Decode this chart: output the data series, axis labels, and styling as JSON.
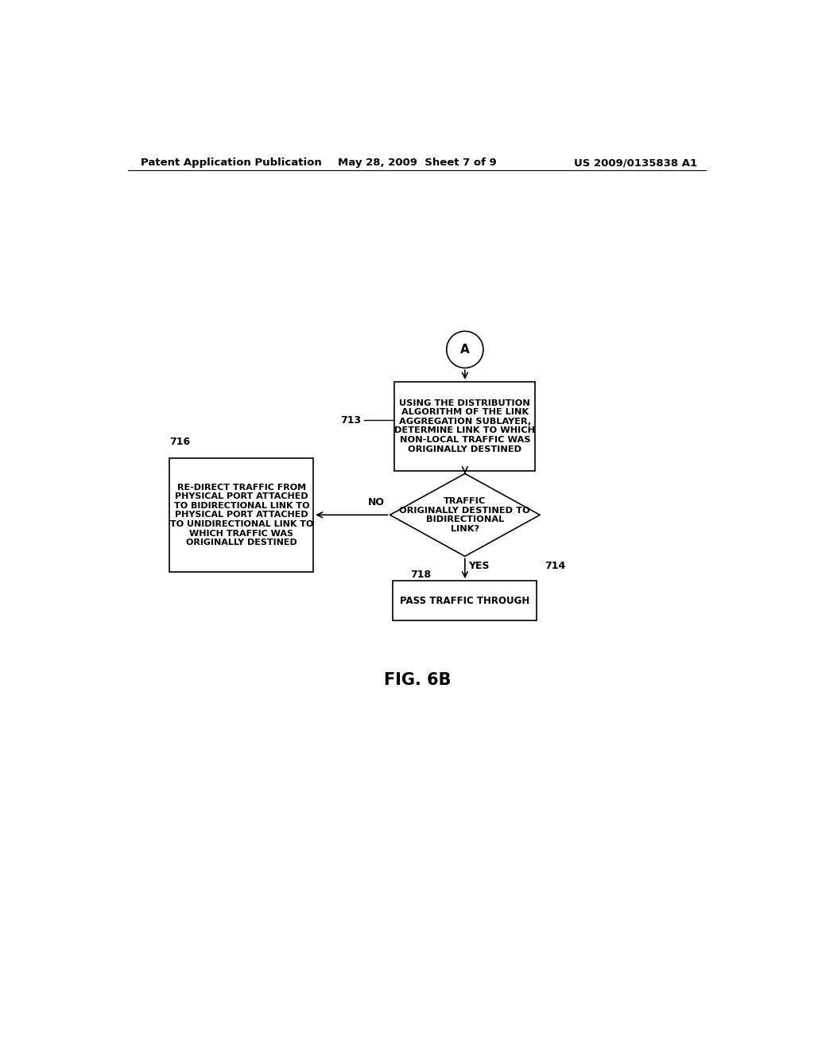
{
  "background_color": "#ffffff",
  "header_left": "Patent Application Publication",
  "header_center": "May 28, 2009  Sheet 7 of 9",
  "header_right": "US 2009/0135838 A1",
  "figure_label": "FIG. 6B",
  "circle_label": "A",
  "box713_text": "USING THE DISTRIBUTION\nALGORITHM OF THE LINK\nAGGREGATION SUBLAYER,\nDETERMINE LINK TO WHICH\nNON-LOCAL TRAFFIC WAS\nORIGINALLY DESTINED",
  "label713": "713",
  "diamond714_text": "TRAFFIC\nORIGINALLY DESTINED TO\nBIDIRECTIONAL\nLINK?",
  "label714": "714",
  "label718": "718",
  "yes_label": "YES",
  "no_label": "NO",
  "box716_text": "RE-DIRECT TRAFFIC FROM\nPHYSICAL PORT ATTACHED\nTO BIDIRECTIONAL LINK TO\nPHYSICAL PORT ATTACHED\nTO UNIDIRECTIONAL LINK TO\nWHICH TRAFFIC WAS\nORIGINALLY DESTINED",
  "label716": "716",
  "box_pass_text": "PASS TRAFFIC THROUGH",
  "font_size_header": 9.5,
  "font_size_body": 8.5,
  "font_size_label": 9,
  "font_size_fig": 15
}
